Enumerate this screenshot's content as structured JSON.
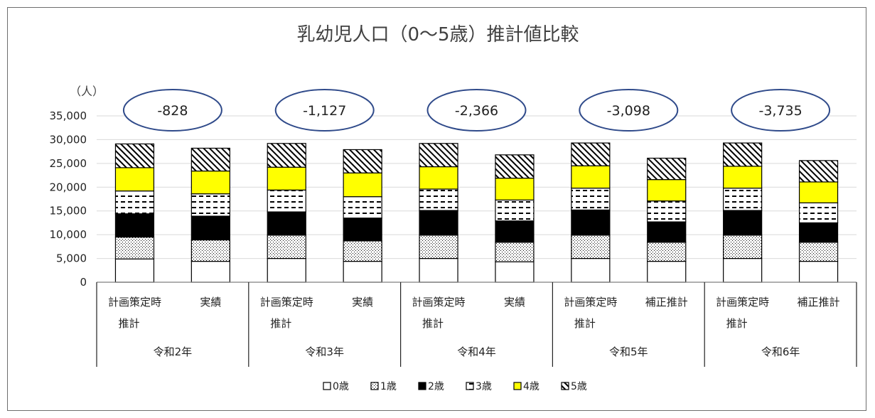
{
  "chart_data": {
    "type": "bar",
    "stacked": true,
    "title": "乳幼児人口（0～5歳）推計値比較",
    "ylabel": "（人）",
    "ylim": [
      0,
      35000
    ],
    "yticks": [
      {
        "value": 0,
        "label": "0"
      },
      {
        "value": 5000,
        "label": "5,000"
      },
      {
        "value": 10000,
        "label": "10,000"
      },
      {
        "value": 15000,
        "label": "15,000"
      },
      {
        "value": 20000,
        "label": "20,000"
      },
      {
        "value": 25000,
        "label": "25,000"
      },
      {
        "value": 30000,
        "label": "30,000"
      },
      {
        "value": 35000,
        "label": "35,000"
      }
    ],
    "grid": true,
    "legend_position": "bottom",
    "groups": [
      {
        "label": "令和2年",
        "difference": "-828",
        "bars": [
          {
            "line1": "計画策定時",
            "line2": "推計",
            "values": [
              4900,
              4600,
              4900,
              4800,
              4900,
              5000
            ]
          },
          {
            "line1": "実績",
            "line2": "",
            "values": [
              4400,
              4500,
              5000,
              4700,
              4800,
              4800
            ]
          }
        ]
      },
      {
        "label": "令和3年",
        "difference": "-1,127",
        "bars": [
          {
            "line1": "計画策定時",
            "line2": "推計",
            "values": [
              5000,
              4900,
              4900,
              4600,
              4800,
              5000
            ]
          },
          {
            "line1": "実績",
            "line2": "",
            "values": [
              4400,
              4300,
              4800,
              4500,
              5000,
              4900
            ]
          }
        ]
      },
      {
        "label": "令和4年",
        "difference": "-2,366",
        "bars": [
          {
            "line1": "計画策定時",
            "line2": "推計",
            "values": [
              5000,
              4900,
              5200,
              4500,
              4700,
              4900
            ]
          },
          {
            "line1": "実績",
            "line2": "",
            "values": [
              4300,
              4100,
              4500,
              4400,
              4600,
              4900
            ]
          }
        ]
      },
      {
        "label": "令和5年",
        "difference": "-3,098",
        "bars": [
          {
            "line1": "計画策定時",
            "line2": "推計",
            "values": [
              5000,
              4900,
              5300,
              4600,
              4700,
              4800
            ]
          },
          {
            "line1": "補正推計",
            "line2": "",
            "values": [
              4400,
              4000,
              4300,
              4400,
              4500,
              4500
            ]
          }
        ]
      },
      {
        "label": "令和6年",
        "difference": "-3,735",
        "bars": [
          {
            "line1": "計画策定時",
            "line2": "推計",
            "values": [
              5000,
              4900,
              5200,
              4700,
              4600,
              4900
            ]
          },
          {
            "line1": "補正推計",
            "line2": "",
            "values": [
              4400,
              4000,
              4100,
              4200,
              4400,
              4500
            ]
          }
        ]
      }
    ],
    "series": [
      {
        "name": "0歳",
        "fill": "white"
      },
      {
        "name": "1歳",
        "fill": "dots"
      },
      {
        "name": "2歳",
        "fill": "black"
      },
      {
        "name": "3歳",
        "fill": "dashes"
      },
      {
        "name": "4歳",
        "fill": "yellow"
      },
      {
        "name": "5歳",
        "fill": "hatch"
      }
    ],
    "colors": {
      "yellow": "#ffff00",
      "black": "#000000",
      "grid": "#d9d9d9",
      "ellipse": "#2f4a8a"
    }
  }
}
